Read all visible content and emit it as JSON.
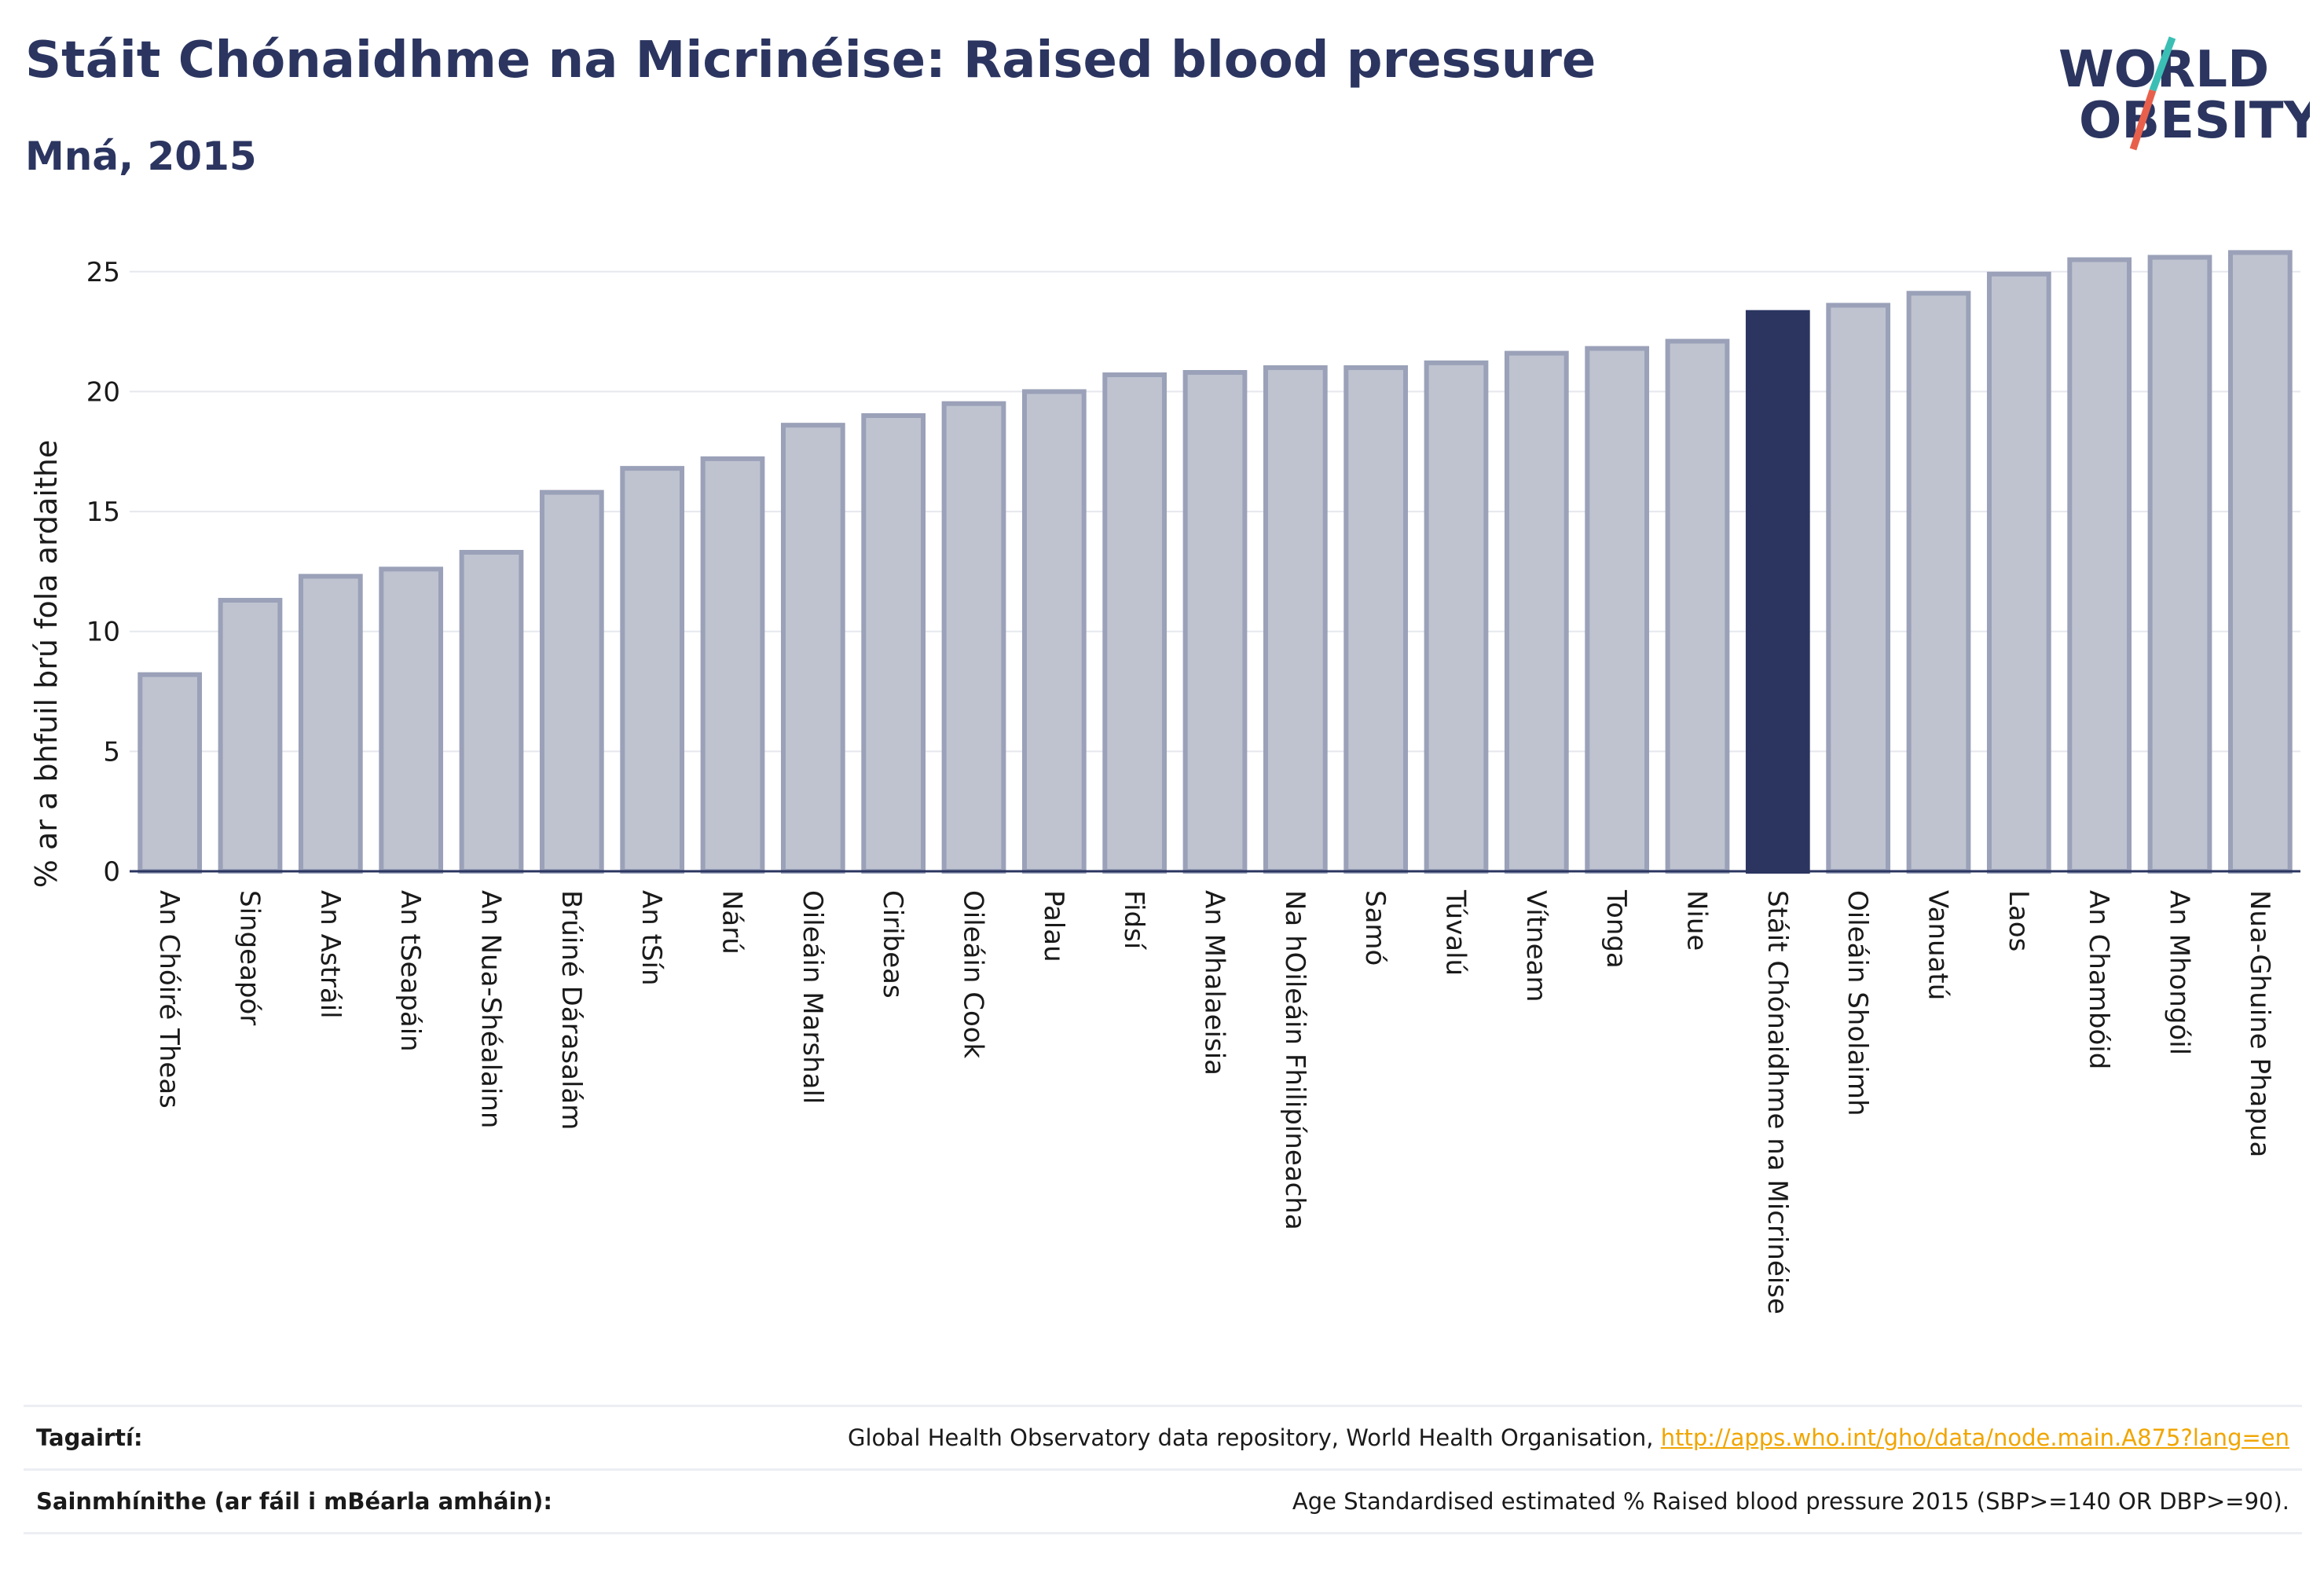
{
  "header": {
    "title": "Stáit Chónaidhme na Micrinéise: Raised blood pressure",
    "subtitle": "Mná, 2015"
  },
  "logo": {
    "line1": "WORLD",
    "line2": "OBESITY",
    "colors": {
      "text": "#2b3560",
      "slash_teal": "#3bbfb5",
      "slash_red": "#e8604c"
    }
  },
  "chart_data": {
    "type": "bar",
    "title": "Stáit Chónaidhme na Micrinéise: Raised blood pressure",
    "subtitle": "Mná, 2015",
    "ylabel": "% ar a bhfuil brú fola ardaithe",
    "xlabel": "",
    "ylim": [
      0,
      26.5
    ],
    "yticks": [
      0,
      5,
      10,
      15,
      20,
      25
    ],
    "grid": true,
    "highlight": "Stáit Chónaidhme na Micrinéise",
    "colors": {
      "bar": "#bfc3d0",
      "bar_edge": "#9aa1b8",
      "highlight": "#2b3560",
      "axis": "#2b3560",
      "grid": "#e6e8ee"
    },
    "categories": [
      "An Chóiré Theas",
      "Singeapór",
      "An Astráil",
      "An tSeapáin",
      "An Nua-Shéalainn",
      "Brúiné Dárasalám",
      "An tSín",
      "Nárú",
      "Oileáin Marshall",
      "Ciribeas",
      "Oileáin Cook",
      "Palau",
      "Fidsí",
      "An Mhalaeisia",
      "Na hOileáin Fhilipíneacha",
      "Samó",
      "Túvalú",
      "Vítneam",
      "Tonga",
      "Niue",
      "Stáit Chónaidhme na Micrinéise",
      "Oileáin Sholaimh",
      "Vanuatú",
      "Laos",
      "An Chambóid",
      "An Mhongóil",
      "Nua-Ghuine Phapua"
    ],
    "values": [
      8.2,
      11.3,
      12.3,
      12.6,
      13.3,
      15.8,
      16.8,
      17.2,
      18.6,
      19.0,
      19.5,
      20.0,
      20.7,
      20.8,
      21.0,
      21.0,
      21.2,
      21.6,
      21.8,
      22.1,
      23.3,
      23.6,
      24.1,
      24.9,
      25.5,
      25.6,
      25.8
    ]
  },
  "footer": {
    "references_label": "Tagairtí:",
    "references_text": "Global Health Observatory data repository, World Health Organisation, ",
    "references_link": "http://apps.who.int/gho/data/node.main.A875?lang=en",
    "definitions_label": "Sainmhínithe (ar fáil i mBéarla amháin):",
    "definitions_text": "Age Standardised estimated % Raised blood pressure 2015 (SBP>=140 OR DBP>=90)."
  }
}
